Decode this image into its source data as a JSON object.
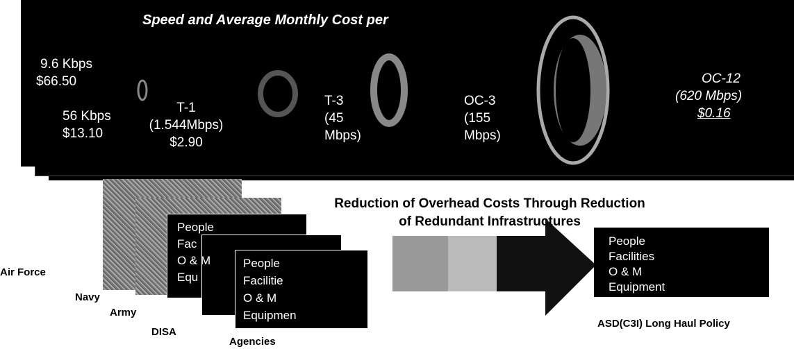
{
  "banner": {
    "title": "Speed and Average Monthly Cost per",
    "tiers": [
      {
        "speed": "9.6 Kbps",
        "cost": "$66.50"
      },
      {
        "speed": "56 Kbps",
        "cost": "$13.10"
      },
      {
        "speed": "T-1",
        "detail": "(1.544Mbps)",
        "cost": "$2.90"
      },
      {
        "speed": "T-3",
        "detail": "(45",
        "detail2": "Mbps)"
      },
      {
        "speed": "OC-3",
        "detail": "(155",
        "detail2": "Mbps)"
      },
      {
        "speed": "OC-12",
        "detail": "(620 Mbps)",
        "cost": "$0.16"
      }
    ]
  },
  "headline": {
    "line1": "Reduction of Overhead Costs Through Reduction",
    "line2": "of Redundant Infrastructures"
  },
  "agencies": {
    "labels": [
      "Air Force",
      "Navy",
      "Army",
      "DISA",
      "Agencies"
    ],
    "back_card": [
      "People",
      "Fac",
      "O & M",
      "Equ"
    ],
    "front_card": [
      "People",
      "Facilitie",
      "O & M",
      "Equipmen"
    ]
  },
  "consolidated": {
    "items": [
      "People",
      "Facilities",
      "O & M",
      "Equipment"
    ],
    "label": "ASD(C3I) Long Haul Policy"
  }
}
